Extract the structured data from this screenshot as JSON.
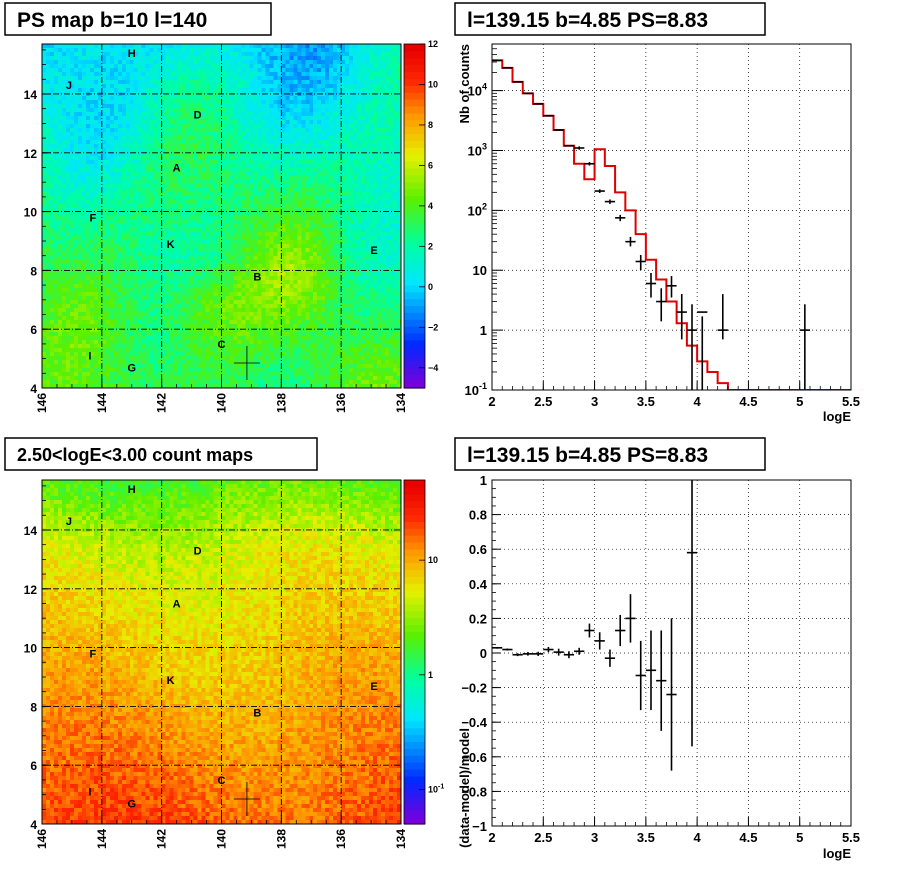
{
  "chart_data": [
    {
      "type": "heatmap",
      "title": "PS map b=10 l=140",
      "xlim": [
        146,
        134
      ],
      "ylim": [
        4,
        15.7
      ],
      "x_ticks": [
        "146",
        "144",
        "142",
        "140",
        "138",
        "136",
        "134"
      ],
      "y_ticks": [
        "4",
        "6",
        "8",
        "10",
        "12",
        "14"
      ],
      "colorbar": {
        "scale": "linear",
        "range": [
          -5,
          12
        ],
        "ticks": [
          "12",
          "10",
          "8",
          "6",
          "4",
          "2",
          "0",
          "-2",
          "-4"
        ]
      },
      "labels": [
        {
          "text": "H",
          "l": 143.0,
          "b": 15.4
        },
        {
          "text": "J",
          "l": 145.1,
          "b": 14.3
        },
        {
          "text": "D",
          "l": 140.8,
          "b": 13.3
        },
        {
          "text": "A",
          "l": 141.5,
          "b": 11.5
        },
        {
          "text": "F",
          "l": 144.3,
          "b": 9.8
        },
        {
          "text": "K",
          "l": 141.7,
          "b": 8.9
        },
        {
          "text": "E",
          "l": 134.9,
          "b": 8.7
        },
        {
          "text": "B",
          "l": 138.8,
          "b": 7.8
        },
        {
          "text": "C",
          "l": 140.0,
          "b": 5.5
        },
        {
          "text": "I",
          "l": 144.4,
          "b": 5.1
        },
        {
          "text": "G",
          "l": 143.0,
          "b": 4.7
        }
      ],
      "marker": {
        "l": 139.15,
        "b": 4.85
      }
    },
    {
      "type": "line",
      "title": "l=139.15 b=4.85 PS=8.83",
      "xlabel": "logE",
      "ylabel": "Nb of counts",
      "xlim": [
        2,
        5.5
      ],
      "ylim": [
        0.1,
        60000
      ],
      "y_scale": "log",
      "x_ticks": [
        "2",
        "2.5",
        "3",
        "3.5",
        "4",
        "4.5",
        "5",
        "5.5"
      ],
      "y_ticks": [
        "10^-1",
        "1",
        "10",
        "10^2",
        "10^3",
        "10^4"
      ],
      "grid": true,
      "series": [
        {
          "bin_edges": [
            2.0,
            2.1,
            2.2,
            2.3,
            2.4,
            2.5,
            2.6,
            2.7,
            2.8,
            2.9,
            3.0,
            3.1,
            3.2,
            3.3,
            3.4,
            3.5,
            3.6,
            3.7,
            3.8,
            3.9,
            4.0,
            4.1,
            4.2,
            4.3,
            4.4,
            4.5,
            4.6,
            4.7,
            4.8,
            4.9,
            5.0,
            5.1,
            5.2,
            5.3,
            5.4,
            5.5
          ],
          "values": [
            32000,
            24000,
            14000,
            9000,
            6000,
            3800,
            2200,
            1200,
            600,
            330,
            1050,
            550,
            200,
            100,
            40,
            15,
            7,
            3,
            1.3,
            0.55,
            0.3,
            0.2,
            0.13,
            0.1,
            0.1,
            0.1,
            0.1,
            0.1,
            0.1,
            0.1,
            0.1,
            0.1,
            0.1,
            0.1,
            0.1
          ]
        },
        {
          "x": [
            2.05,
            2.15,
            2.25,
            2.35,
            2.45,
            2.55,
            2.65,
            2.75,
            2.85,
            2.95,
            3.05,
            3.15,
            3.25,
            3.35,
            3.45,
            3.55,
            3.65,
            3.75,
            3.85,
            3.95,
            4.05,
            4.25,
            5.05
          ],
          "y": [
            32000,
            24000,
            14000,
            9000,
            6000,
            3800,
            2200,
            1200,
            1100,
            600,
            210,
            140,
            75,
            30,
            14,
            6,
            3,
            5.5,
            2,
            1,
            2,
            1,
            1
          ],
          "y_low": [
            31800,
            23800,
            13800,
            8900,
            5920,
            3740,
            2150,
            1170,
            1030,
            560,
            195,
            128,
            66,
            25,
            10,
            3.5,
            1.4,
            3.5,
            0.7,
            0.1,
            0.1,
            0.7,
            0.1
          ],
          "y_high": [
            32200,
            24200,
            14200,
            9100,
            6080,
            3860,
            2250,
            1230,
            1170,
            640,
            225,
            152,
            84,
            36,
            18,
            9,
            5,
            8,
            4,
            2.7,
            1.7,
            4,
            2.7
          ]
        }
      ]
    },
    {
      "type": "heatmap",
      "title": "2.50<logE<3.00 count maps",
      "xlim": [
        146,
        134
      ],
      "ylim": [
        4,
        15.7
      ],
      "x_ticks": [
        "146",
        "144",
        "142",
        "140",
        "138",
        "136",
        "134"
      ],
      "y_ticks": [
        "4",
        "6",
        "8",
        "10",
        "12",
        "14"
      ],
      "colorbar": {
        "scale": "log",
        "range": [
          0.05,
          50
        ],
        "ticks": [
          "10",
          "1",
          "10^-1"
        ]
      },
      "labels": [
        {
          "text": "H",
          "l": 143.0,
          "b": 15.4
        },
        {
          "text": "J",
          "l": 145.1,
          "b": 14.3
        },
        {
          "text": "D",
          "l": 140.8,
          "b": 13.3
        },
        {
          "text": "A",
          "l": 141.5,
          "b": 11.5
        },
        {
          "text": "F",
          "l": 144.3,
          "b": 9.8
        },
        {
          "text": "K",
          "l": 141.7,
          "b": 8.9
        },
        {
          "text": "E",
          "l": 134.9,
          "b": 8.7
        },
        {
          "text": "B",
          "l": 138.8,
          "b": 7.8
        },
        {
          "text": "C",
          "l": 140.0,
          "b": 5.5
        },
        {
          "text": "I",
          "l": 144.4,
          "b": 5.1
        },
        {
          "text": "G",
          "l": 143.0,
          "b": 4.7
        }
      ],
      "marker": {
        "l": 139.15,
        "b": 4.85
      }
    },
    {
      "type": "scatter",
      "title": "l=139.15 b=4.85 PS=8.83",
      "xlabel": "logE",
      "ylabel": "(data-model)/model",
      "xlim": [
        2,
        5.5
      ],
      "ylim": [
        -1,
        1
      ],
      "x_ticks": [
        "2",
        "2.5",
        "3",
        "3.5",
        "4",
        "4.5",
        "5",
        "5.5"
      ],
      "y_ticks": [
        "−1",
        "−0.8",
        "−0.6",
        "−0.4",
        "−0.2",
        "0",
        "0.2",
        "0.4",
        "0.6",
        "0.8",
        "1"
      ],
      "grid": true,
      "series": [
        {
          "x": [
            2.05,
            2.15,
            2.25,
            2.35,
            2.45,
            2.55,
            2.65,
            2.75,
            2.85,
            2.95,
            3.05,
            3.15,
            3.25,
            3.35,
            3.45,
            3.55,
            3.65,
            3.75,
            3.95
          ],
          "y": [
            0.03,
            0.02,
            -0.01,
            -0.005,
            -0.005,
            0.02,
            0.005,
            -0.01,
            0.01,
            0.13,
            0.07,
            -0.03,
            0.13,
            0.2,
            -0.13,
            -0.1,
            -0.16,
            -0.24,
            0.58
          ],
          "err": [
            0.005,
            0.006,
            0.008,
            0.01,
            0.012,
            0.015,
            0.02,
            0.02,
            0.02,
            0.04,
            0.05,
            0.05,
            0.09,
            0.14,
            0.2,
            0.23,
            0.29,
            0.44,
            1.12
          ]
        }
      ]
    }
  ]
}
